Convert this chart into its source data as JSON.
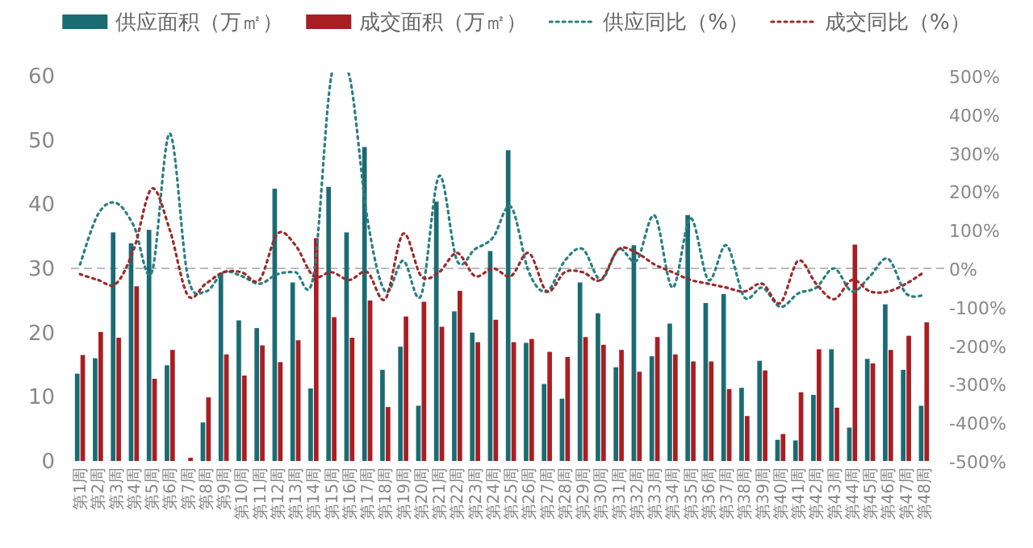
{
  "chart_data": {
    "type": "bar",
    "categories": [
      "第1周",
      "第2周",
      "第3周",
      "第4周",
      "第5周",
      "第6周",
      "第7周",
      "第8周",
      "第9周",
      "第10周",
      "第11周",
      "第12周",
      "第13周",
      "第14周",
      "第15周",
      "第16周",
      "第17周",
      "第18周",
      "第19周",
      "第20周",
      "第21周",
      "第22周",
      "第23周",
      "第24周",
      "第25周",
      "第26周",
      "第27周",
      "第28周",
      "第29周",
      "第30周",
      "第31周",
      "第32周",
      "第33周",
      "第34周",
      "第35周",
      "第36周",
      "第37周",
      "第38周",
      "第39周",
      "第40周",
      "第41周",
      "第42周",
      "第43周",
      "第44周",
      "第45周",
      "第46周",
      "第47周",
      "第48周"
    ],
    "series": [
      {
        "name": "供应面积（万㎡）",
        "color": "#1b6b72",
        "values": [
          13.6,
          16.0,
          35.6,
          33.9,
          36.0,
          14.9,
          0,
          6.0,
          29.3,
          21.9,
          20.7,
          42.4,
          27.8,
          11.3,
          42.7,
          35.6,
          48.9,
          14.2,
          17.8,
          8.6,
          40.4,
          23.3,
          20.0,
          32.7,
          48.4,
          18.4,
          12.0,
          9.7,
          27.8,
          23.0,
          14.6,
          33.6,
          16.3,
          21.4,
          38.3,
          24.6,
          26.0,
          11.4,
          15.6,
          3.3,
          3.2,
          10.3,
          17.4,
          5.2,
          15.9,
          24.4,
          14.2,
          8.6
        ]
      },
      {
        "name": "成交面积（万㎡）",
        "color": "#a81e22",
        "values": [
          16.5,
          20.1,
          19.2,
          27.2,
          12.8,
          17.3,
          0.5,
          9.9,
          16.6,
          13.3,
          18.0,
          15.4,
          18.8,
          34.7,
          22.4,
          19.2,
          25.0,
          8.4,
          22.5,
          24.8,
          20.9,
          26.5,
          18.5,
          22.0,
          18.5,
          19.0,
          17.0,
          16.2,
          19.3,
          18.1,
          17.3,
          13.9,
          19.3,
          16.6,
          15.5,
          15.5,
          11.2,
          7.0,
          14.1,
          4.2,
          10.7,
          17.4,
          8.3,
          33.7,
          15.2,
          17.3,
          19.5,
          21.6
        ]
      },
      {
        "name": "供应同比（%）",
        "type": "line",
        "axis": "y2",
        "line_style": "dotted",
        "color": "#2a7f80",
        "values": [
          10,
          140,
          170,
          110,
          -10,
          350,
          -20,
          -60,
          -10,
          -20,
          -40,
          -15,
          -10,
          -20,
          500,
          500,
          130,
          -60,
          20,
          -70,
          240,
          20,
          50,
          80,
          160,
          -10,
          -60,
          20,
          50,
          -30,
          50,
          20,
          137,
          -50,
          130,
          -30,
          60,
          -75,
          -50,
          -100,
          -65,
          -50,
          0,
          -60,
          -20,
          25,
          -65,
          -70
        ]
      },
      {
        "name": "成交同比（%）",
        "type": "line",
        "axis": "y2",
        "line_style": "dotted",
        "color": "#9b2b2b",
        "values": [
          -15,
          -30,
          -40,
          50,
          207,
          100,
          -70,
          -40,
          -10,
          -10,
          -30,
          90,
          60,
          -20,
          -10,
          -30,
          -10,
          -80,
          90,
          -20,
          -10,
          40,
          -20,
          0,
          -20,
          40,
          -60,
          -10,
          -10,
          -30,
          50,
          40,
          10,
          -10,
          -30,
          -40,
          -50,
          -60,
          -40,
          -90,
          20,
          -40,
          -80,
          -30,
          -60,
          -60,
          -40,
          -10
        ]
      }
    ],
    "ylim": [
      0,
      60
    ],
    "yticks": [
      0,
      10,
      20,
      30,
      40,
      50,
      60
    ],
    "y2lim": [
      -500,
      500
    ],
    "y2ticks": [
      {
        "value": -500,
        "label": "-500%"
      },
      {
        "value": -400,
        "label": "-400%"
      },
      {
        "value": -300,
        "label": "-300%"
      },
      {
        "value": -200,
        "label": "-200%"
      },
      {
        "value": -100,
        "label": "-100%"
      },
      {
        "value": 0,
        "label": "0%"
      },
      {
        "value": 100,
        "label": "100%"
      },
      {
        "value": 200,
        "label": "200%"
      },
      {
        "value": 300,
        "label": "300%"
      },
      {
        "value": 400,
        "label": "400%"
      },
      {
        "value": 500,
        "label": "500%"
      }
    ],
    "ref_lines": [
      {
        "axis": "y2",
        "value": 0,
        "color": "#bbbbbb",
        "line_style": "dashed"
      }
    ],
    "legend": "top"
  }
}
